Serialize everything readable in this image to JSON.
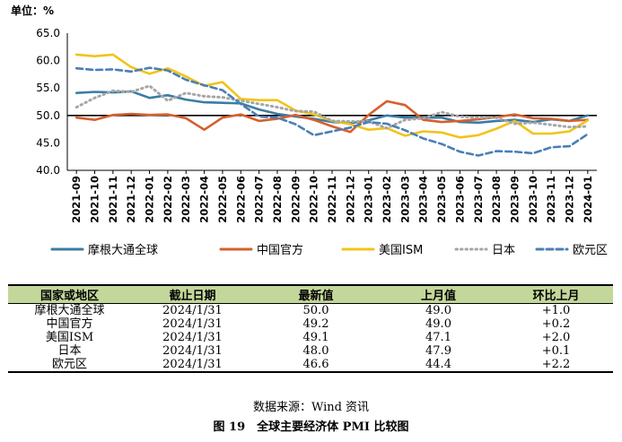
{
  "chart_data": {
    "type": "line",
    "unit_label": "单位：%",
    "ylim": [
      40,
      65
    ],
    "yticks": [
      "40.0",
      "45.0",
      "50.0",
      "55.0",
      "60.0",
      "65.0"
    ],
    "reference_line": 50,
    "categories": [
      "2021-09",
      "2021-10",
      "2021-11",
      "2021-12",
      "2022-01",
      "2022-02",
      "2022-03",
      "2022-04",
      "2022-05",
      "2022-06",
      "2022-07",
      "2022-08",
      "2022-09",
      "2022-10",
      "2022-11",
      "2022-12",
      "2023-01",
      "2023-02",
      "2023-03",
      "2023-04",
      "2023-05",
      "2023-06",
      "2023-07",
      "2023-08",
      "2023-09",
      "2023-10",
      "2023-11",
      "2023-12",
      "2024-01"
    ],
    "series": [
      {
        "name": "摩根大通全球",
        "color": "#3a7ca5",
        "style": "solid",
        "values": [
          54.1,
          54.3,
          54.2,
          54.4,
          53.2,
          53.7,
          52.9,
          52.4,
          52.3,
          52.2,
          51.1,
          50.3,
          49.8,
          49.4,
          48.8,
          48.6,
          49.1,
          50.0,
          49.6,
          49.6,
          49.6,
          48.8,
          48.7,
          49.0,
          49.2,
          48.8,
          49.3,
          49.0,
          50.0
        ]
      },
      {
        "name": "中国官方",
        "color": "#d65f2e",
        "style": "solid",
        "values": [
          49.6,
          49.2,
          50.1,
          50.3,
          50.1,
          50.2,
          49.5,
          47.4,
          49.6,
          50.2,
          49.0,
          49.4,
          50.1,
          49.2,
          48.0,
          47.0,
          50.1,
          52.6,
          51.9,
          49.2,
          48.8,
          49.0,
          49.3,
          49.7,
          50.2,
          49.5,
          49.4,
          49.0,
          49.2
        ]
      },
      {
        "name": "美国ISM",
        "color": "#f0c419",
        "style": "solid",
        "values": [
          61.1,
          60.8,
          61.1,
          58.8,
          57.6,
          58.6,
          57.1,
          55.4,
          56.1,
          53.0,
          52.8,
          52.8,
          50.9,
          50.2,
          49.0,
          48.4,
          47.4,
          47.7,
          46.3,
          47.1,
          46.9,
          46.0,
          46.4,
          47.6,
          49.0,
          46.7,
          46.7,
          47.1,
          49.1
        ]
      },
      {
        "name": "日本",
        "color": "#a6a6a6",
        "style": "dotted",
        "values": [
          51.5,
          53.2,
          54.5,
          54.3,
          55.4,
          52.7,
          54.1,
          53.5,
          53.3,
          52.7,
          52.1,
          51.5,
          50.8,
          50.7,
          49.0,
          48.9,
          48.9,
          47.7,
          49.2,
          49.5,
          50.6,
          49.8,
          49.6,
          49.6,
          48.5,
          48.7,
          48.3,
          47.9,
          48.0
        ]
      },
      {
        "name": "欧元区",
        "color": "#4a7fb5",
        "style": "dashed",
        "values": [
          58.6,
          58.3,
          58.4,
          58.0,
          58.7,
          58.2,
          56.5,
          55.5,
          54.6,
          52.1,
          49.8,
          49.6,
          48.4,
          46.4,
          47.1,
          47.8,
          48.8,
          48.5,
          47.3,
          45.8,
          44.8,
          43.4,
          42.7,
          43.5,
          43.4,
          43.1,
          44.2,
          44.4,
          46.6
        ]
      }
    ]
  },
  "table": {
    "headers": [
      "国家或地区",
      "截止日期",
      "最新值",
      "上月值",
      "环比上月"
    ],
    "rows": [
      [
        "摩根大通全球",
        "2024/1/31",
        "50.0",
        "49.0",
        "+1.0"
      ],
      [
        "中国官方",
        "2024/1/31",
        "49.2",
        "49.0",
        "+0.2"
      ],
      [
        "美国ISM",
        "2024/1/31",
        "49.1",
        "47.1",
        "+2.0"
      ],
      [
        "日本",
        "2024/1/31",
        "48.0",
        "47.9",
        "+0.1"
      ],
      [
        "欧元区",
        "2024/1/31",
        "46.6",
        "44.4",
        "+2.2"
      ]
    ]
  },
  "source": "数据来源：Wind 资讯",
  "caption": "图 19　全球主要经济体 PMI 比较图"
}
